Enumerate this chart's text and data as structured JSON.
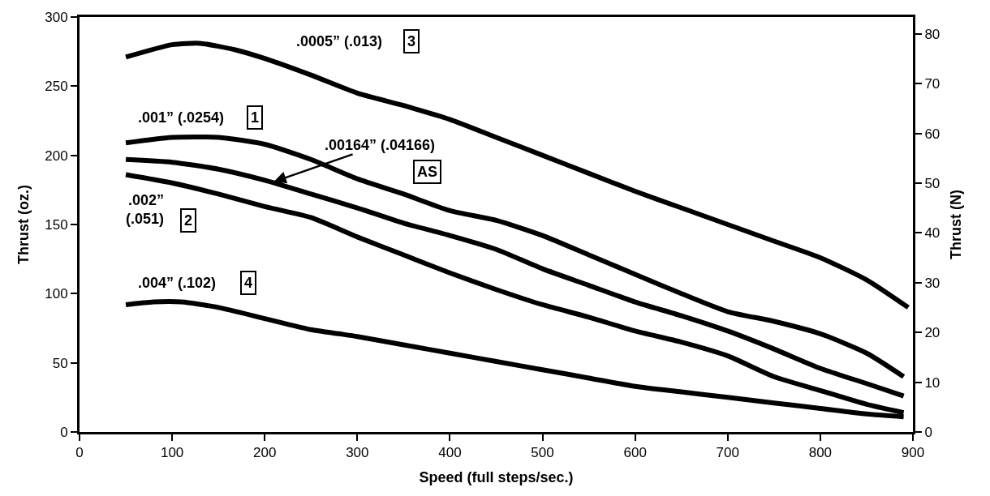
{
  "chart_data": {
    "type": "line",
    "xlabel": "Speed (full steps/sec.)",
    "ylabel": "Thrust (oz.)",
    "y2label": "Thrust (N)",
    "xlim": [
      0,
      900
    ],
    "xticks": [
      0,
      100,
      200,
      300,
      400,
      500,
      600,
      700,
      800,
      900
    ],
    "ylim": [
      0,
      300
    ],
    "yticks": [
      0,
      50,
      100,
      150,
      200,
      250,
      300
    ],
    "y2lim": [
      0,
      83.4
    ],
    "y2ticks": [
      0,
      10,
      20,
      30,
      40,
      50,
      60,
      70,
      80
    ],
    "grid": false,
    "marker": "none",
    "line_style": "solid",
    "series": [
      {
        "color": "#000000",
        "x": [
          50,
          100,
          130,
          170,
          200,
          250,
          300,
          350,
          400,
          450,
          500,
          550,
          600,
          650,
          700,
          750,
          800,
          850,
          895
        ],
        "values": [
          271,
          280,
          281,
          276,
          270,
          258,
          245,
          236,
          226,
          213,
          200,
          187,
          174,
          162,
          150,
          138,
          126,
          110,
          90
        ]
      },
      {
        "color": "#000000",
        "x": [
          50,
          100,
          150,
          200,
          250,
          300,
          350,
          400,
          450,
          500,
          550,
          600,
          650,
          700,
          750,
          800,
          850,
          890
        ],
        "values": [
          209,
          213,
          213,
          208,
          197,
          183,
          172,
          160,
          153,
          142,
          128,
          114,
          100,
          87,
          80,
          71,
          57,
          40
        ]
      },
      {
        "color": "#000000",
        "x": [
          50,
          100,
          150,
          200,
          250,
          300,
          350,
          400,
          450,
          500,
          550,
          600,
          650,
          700,
          750,
          800,
          850,
          890
        ],
        "values": [
          197,
          195,
          190,
          182,
          172,
          162,
          151,
          142,
          132,
          118,
          106,
          94,
          84,
          73,
          60,
          46,
          35,
          26
        ]
      },
      {
        "color": "#000000",
        "x": [
          50,
          100,
          150,
          200,
          250,
          300,
          350,
          400,
          450,
          500,
          550,
          600,
          650,
          700,
          750,
          800,
          850,
          890
        ],
        "values": [
          186,
          180,
          172,
          163,
          155,
          141,
          128,
          115,
          103,
          92,
          83,
          73,
          65,
          55,
          40,
          30,
          20,
          14
        ]
      },
      {
        "color": "#000000",
        "x": [
          50,
          80,
          110,
          150,
          200,
          250,
          280,
          300,
          350,
          400,
          450,
          500,
          550,
          600,
          650,
          700,
          750,
          800,
          850,
          890
        ],
        "values": [
          92,
          94,
          94,
          90,
          82,
          74,
          71,
          69,
          63,
          57,
          51,
          45,
          39,
          33,
          29,
          25,
          21,
          17,
          13,
          11
        ]
      }
    ],
    "annotations": [
      ".0005” (.013)",
      "3",
      ".001” (.0254)",
      "1",
      {
        "text": ".00164” (.04166)",
        "x": 210,
        "y": 181
      },
      "AS",
      ".002”\n(.051)",
      "2",
      ".004” (.102)",
      "4"
    ]
  }
}
